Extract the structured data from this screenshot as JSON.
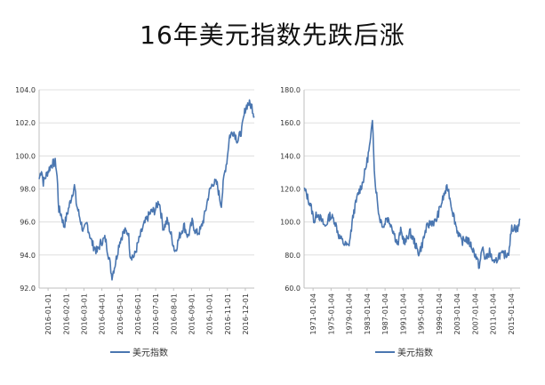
{
  "title": "16年美元指数先跌后涨",
  "chart_data": [
    {
      "type": "line",
      "series_color": "#4a76b0",
      "legend": {
        "label": "美元指数",
        "placement": "bottom-left"
      },
      "ylim": [
        92,
        104
      ],
      "yticks": [
        "92.0",
        "94.0",
        "96.0",
        "98.0",
        "100.0",
        "102.0",
        "104.0"
      ],
      "yvalues": [
        92,
        94,
        96,
        98,
        100,
        102,
        104
      ],
      "xticks": [
        "2016-01-01",
        "2016-02-01",
        "2016-03-01",
        "2016-04-01",
        "2016-05-01",
        "2016-06-01",
        "2016-07-01",
        "2016-08-01",
        "2016-09-01",
        "2016-10-01",
        "2016-11-01",
        "2016-12-01"
      ],
      "series": [
        {
          "name": "美元指数",
          "x": [
            "2016-01-01",
            "2016-01-05",
            "2016-01-08",
            "2016-01-15",
            "2016-01-22",
            "2016-01-29",
            "2016-02-01",
            "2016-02-03",
            "2016-02-08",
            "2016-02-12",
            "2016-02-19",
            "2016-02-26",
            "2016-03-01",
            "2016-03-04",
            "2016-03-11",
            "2016-03-16",
            "2016-03-22",
            "2016-03-29",
            "2016-04-01",
            "2016-04-08",
            "2016-04-15",
            "2016-04-22",
            "2016-04-29",
            "2016-05-03",
            "2016-05-09",
            "2016-05-16",
            "2016-05-23",
            "2016-05-31",
            "2016-06-03",
            "2016-06-10",
            "2016-06-17",
            "2016-06-24",
            "2016-06-30",
            "2016-07-08",
            "2016-07-15",
            "2016-07-22",
            "2016-07-29",
            "2016-08-05",
            "2016-08-12",
            "2016-08-18",
            "2016-08-26",
            "2016-09-02",
            "2016-09-09",
            "2016-09-16",
            "2016-09-23",
            "2016-09-30",
            "2016-10-07",
            "2016-10-14",
            "2016-10-21",
            "2016-10-28",
            "2016-11-04",
            "2016-11-09",
            "2016-11-14",
            "2016-11-18",
            "2016-11-25",
            "2016-12-02",
            "2016-12-09",
            "2016-12-15",
            "2016-12-20",
            "2016-12-26",
            "2016-12-30"
          ],
          "y": [
            98.6,
            99.2,
            98.4,
            99.0,
            99.5,
            99.6,
            98.5,
            96.8,
            96.4,
            95.7,
            96.7,
            97.7,
            98.2,
            97.1,
            96.1,
            95.4,
            95.9,
            94.9,
            94.6,
            94.2,
            94.8,
            95.0,
            93.7,
            92.7,
            93.5,
            94.8,
            95.4,
            95.4,
            94.0,
            93.9,
            94.8,
            95.6,
            96.1,
            96.6,
            96.7,
            97.3,
            95.6,
            96.1,
            95.1,
            94.2,
            95.2,
            95.8,
            95.1,
            96.0,
            95.3,
            95.5,
            96.4,
            97.7,
            98.4,
            98.3,
            97.0,
            98.8,
            99.8,
            101.2,
            101.5,
            100.9,
            101.6,
            102.9,
            103.2,
            103.0,
            102.4
          ]
        }
      ]
    },
    {
      "type": "line",
      "series_color": "#4a76b0",
      "legend": {
        "label": "美元指数",
        "placement": "bottom-left"
      },
      "ylim": [
        60,
        180
      ],
      "yticks": [
        "60.0",
        "80.0",
        "100.0",
        "120.0",
        "140.0",
        "160.0",
        "180.0"
      ],
      "yvalues": [
        60,
        80,
        100,
        120,
        140,
        160,
        180
      ],
      "xticks": [
        "1971-01-04",
        "1975-01-04",
        "1979-01-04",
        "1983-01-04",
        "1987-01-04",
        "1991-01-04",
        "1995-01-04",
        "1999-01-04",
        "2003-01-04",
        "2007-01-04",
        "2011-01-04",
        "2015-01-04"
      ],
      "series": [
        {
          "name": "美元指数",
          "x": [
            1971.0,
            1971.5,
            1972.5,
            1973.2,
            1973.8,
            1974.5,
            1975.5,
            1976.5,
            1977.5,
            1978.5,
            1979.5,
            1980.4,
            1980.8,
            1981.5,
            1982.5,
            1983.5,
            1984.5,
            1985.2,
            1985.6,
            1986.0,
            1987.0,
            1988.0,
            1988.5,
            1989.5,
            1990.5,
            1991.0,
            1991.5,
            1992.5,
            1993.5,
            1994.5,
            1995.3,
            1996.0,
            1997.0,
            1998.0,
            1999.0,
            2000.0,
            2001.0,
            2001.6,
            2002.5,
            2003.5,
            2004.5,
            2005.5,
            2006.5,
            2007.5,
            2008.3,
            2009.0,
            2009.6,
            2010.5,
            2011.5,
            2012.5,
            2013.5,
            2014.5,
            2015.2,
            2015.8,
            2016.5,
            2016.99
          ],
          "y": [
            120,
            117,
            109,
            100,
            106,
            102,
            97,
            104,
            101,
            91,
            87,
            85,
            90,
            105,
            117,
            124,
            138,
            150,
            164,
            128,
            103,
            97,
            103,
            99,
            90,
            86,
            95,
            87,
            94,
            88,
            81,
            85,
            96,
            100,
            100,
            109,
            118,
            121,
            108,
            96,
            88,
            90,
            86,
            80,
            73,
            85,
            77,
            82,
            74,
            80,
            80,
            81,
            96,
            97,
            95,
            102
          ]
        }
      ]
    }
  ]
}
